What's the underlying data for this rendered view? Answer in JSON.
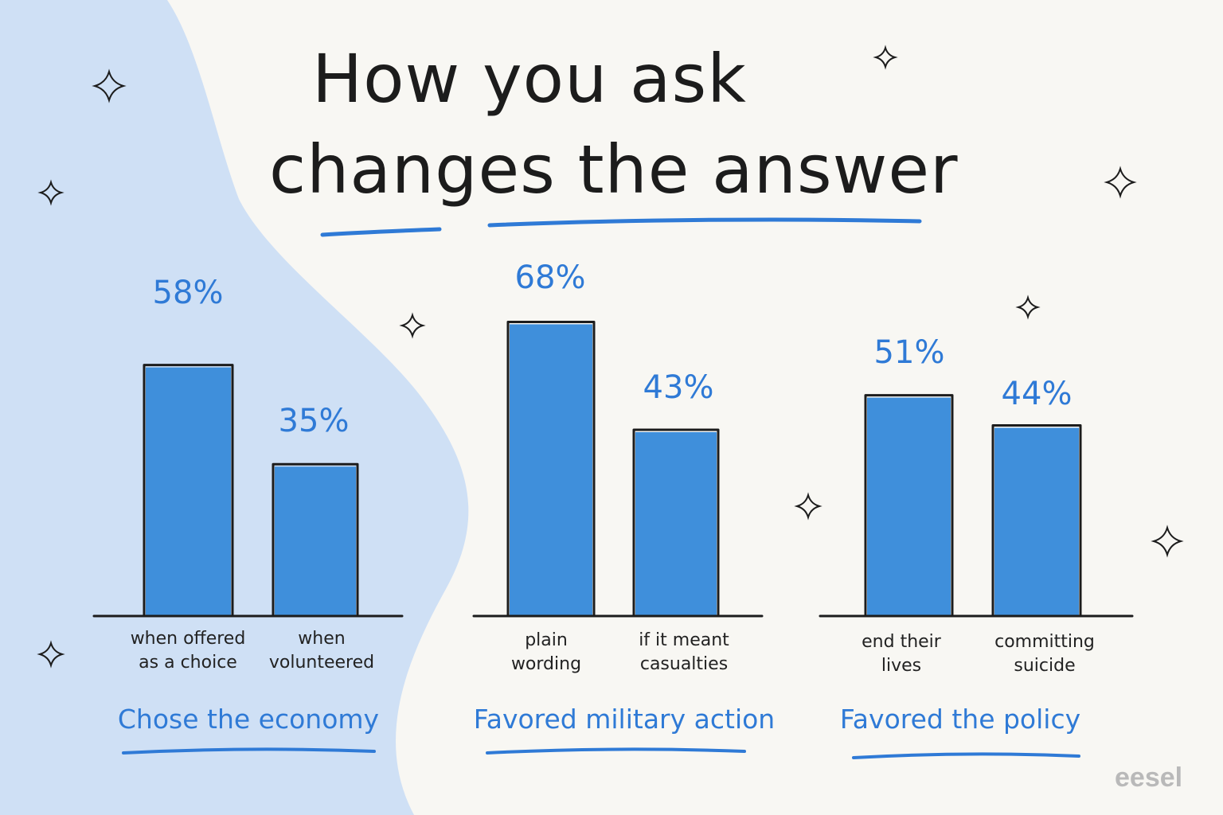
{
  "colors": {
    "background": "#f8f7f3",
    "blob": "#cfe0f5",
    "bar": "#3f8fdb",
    "accent": "#2f7ad6",
    "ink": "#1c1c1c"
  },
  "title": {
    "line1": "How you ask",
    "line2": "changes the answer"
  },
  "brand": "eesel",
  "chart_data": [
    {
      "type": "bar",
      "title": "Chose the economy",
      "categories": [
        "when offered\nas a choice",
        "when\nvolunteered"
      ],
      "values": [
        58,
        35
      ],
      "value_labels": [
        "58%",
        "35%"
      ],
      "ylim": [
        0,
        100
      ]
    },
    {
      "type": "bar",
      "title": "Favored military action",
      "categories": [
        "plain\nwording",
        "if it meant\ncasualties"
      ],
      "values": [
        68,
        43
      ],
      "value_labels": [
        "68%",
        "43%"
      ],
      "ylim": [
        0,
        100
      ]
    },
    {
      "type": "bar",
      "title": "Favored the policy",
      "categories": [
        "end their\nlives",
        "committing\nsuicide"
      ],
      "values": [
        51,
        44
      ],
      "value_labels": [
        "51%",
        "44%"
      ],
      "ylim": [
        0,
        100
      ]
    }
  ]
}
